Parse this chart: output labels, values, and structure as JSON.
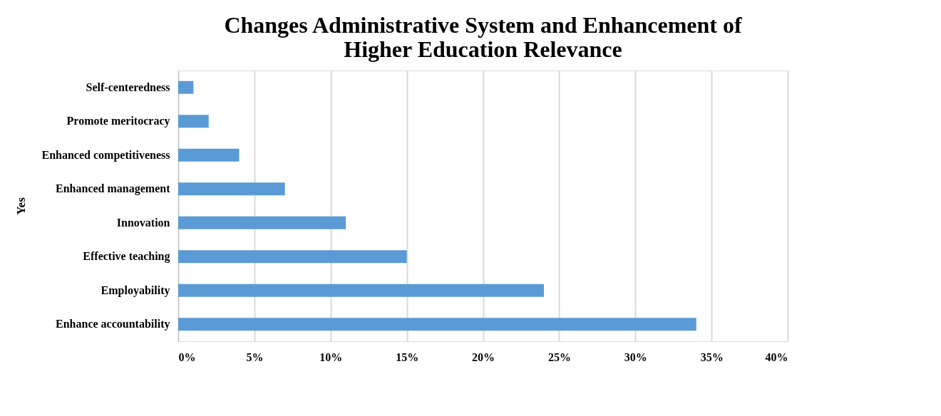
{
  "chart_data": {
    "type": "bar",
    "orientation": "horizontal",
    "title": [
      "Changes Administrative System  and Enhancement of",
      "Higher Education Relevance"
    ],
    "ylabel": "Yes",
    "categories": [
      "Self-centeredness",
      "Promote meritocracy",
      "Enhanced competitiveness",
      "Enhanced management",
      "Innovation",
      "Effective teaching",
      "Employability",
      "Enhance accountability"
    ],
    "values": [
      1,
      2,
      4,
      7,
      11,
      15,
      24,
      34
    ],
    "color": "#5b9bd5",
    "xlim": [
      0,
      40
    ],
    "xticks": [
      {
        "value": 0,
        "label": "0%"
      },
      {
        "value": 5,
        "label": "5%"
      },
      {
        "value": 10,
        "label": "10%"
      },
      {
        "value": 15,
        "label": "15%"
      },
      {
        "value": 20,
        "label": "20%"
      },
      {
        "value": 25,
        "label": "25%"
      },
      {
        "value": 30,
        "label": "30%"
      },
      {
        "value": 35,
        "label": "35%"
      },
      {
        "value": 40,
        "label": "40%"
      }
    ],
    "grid": "x"
  }
}
